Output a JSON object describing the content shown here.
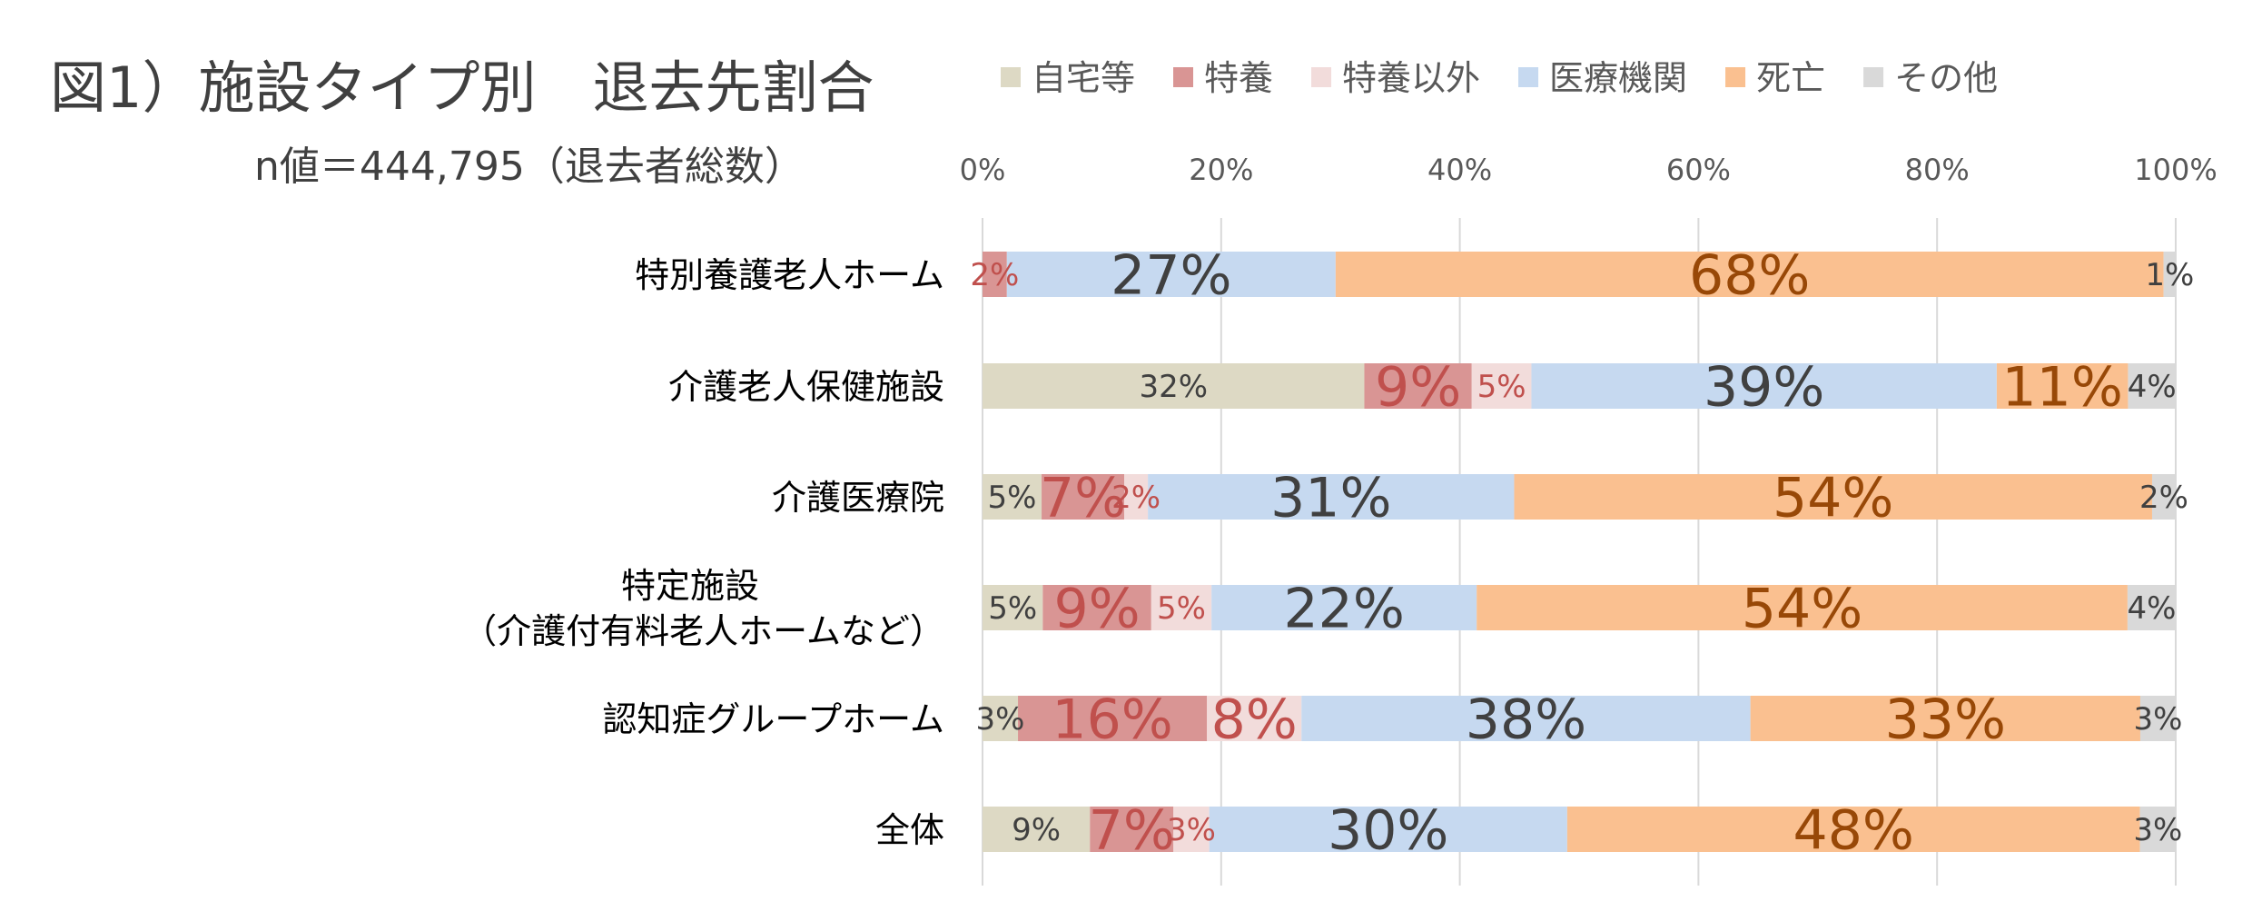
{
  "chart_data": {
    "type": "bar",
    "orientation": "horizontal",
    "stacked": "percent",
    "title": "図1）施設タイプ別　退去先割合",
    "subtitle": "n値＝444,795（退去者総数）",
    "xlim": [
      0,
      100
    ],
    "x_ticks": [
      "0%",
      "20%",
      "40%",
      "60%",
      "80%",
      "100%"
    ],
    "grid": true,
    "legend_position": "top",
    "categories": [
      [
        "特別養護老人ホーム"
      ],
      [
        "介護老人保健施設"
      ],
      [
        "介護医療院"
      ],
      [
        "特定施設",
        "（介護付有料老人ホームなど）"
      ],
      [
        "認知症グループホーム"
      ],
      [
        "全体"
      ]
    ],
    "series": [
      {
        "name": "自宅等",
        "color": "#ddd9c4",
        "label_color": "#404040",
        "values": [
          0,
          32,
          5,
          5,
          3,
          9
        ],
        "labels": [
          "",
          "32%",
          "5%",
          "5%",
          "3%",
          "9%"
        ]
      },
      {
        "name": "特養",
        "color": "#d99594",
        "label_color": "#c0504d",
        "values": [
          2,
          9,
          7,
          9,
          16,
          7
        ],
        "labels": [
          "2%",
          "9%",
          "7%",
          "9%",
          "16%",
          "7%"
        ]
      },
      {
        "name": "特養以外",
        "color": "#f2dcdb",
        "label_color": "#c0504d",
        "values": [
          0,
          5,
          2,
          5,
          8,
          3
        ],
        "labels": [
          "",
          "5%",
          "2%",
          "5%",
          "8%",
          "3%"
        ]
      },
      {
        "name": "医療機関",
        "color": "#c6d9f0",
        "label_color": "#404040",
        "values": [
          27,
          39,
          31,
          22,
          38,
          30
        ],
        "labels": [
          "27%",
          "39%",
          "31%",
          "22%",
          "38%",
          "30%"
        ]
      },
      {
        "name": "死亡",
        "color": "#fac090",
        "label_color": "#984807",
        "values": [
          68,
          11,
          54,
          54,
          33,
          48
        ],
        "labels": [
          "68%",
          "11%",
          "54%",
          "54%",
          "33%",
          "48%"
        ]
      },
      {
        "name": "その他",
        "color": "#d9d9d9",
        "label_color": "#404040",
        "values": [
          1,
          4,
          2,
          4,
          3,
          3
        ],
        "labels": [
          "1%",
          "4%",
          "2%",
          "4%",
          "3%",
          "3%"
        ]
      }
    ]
  }
}
